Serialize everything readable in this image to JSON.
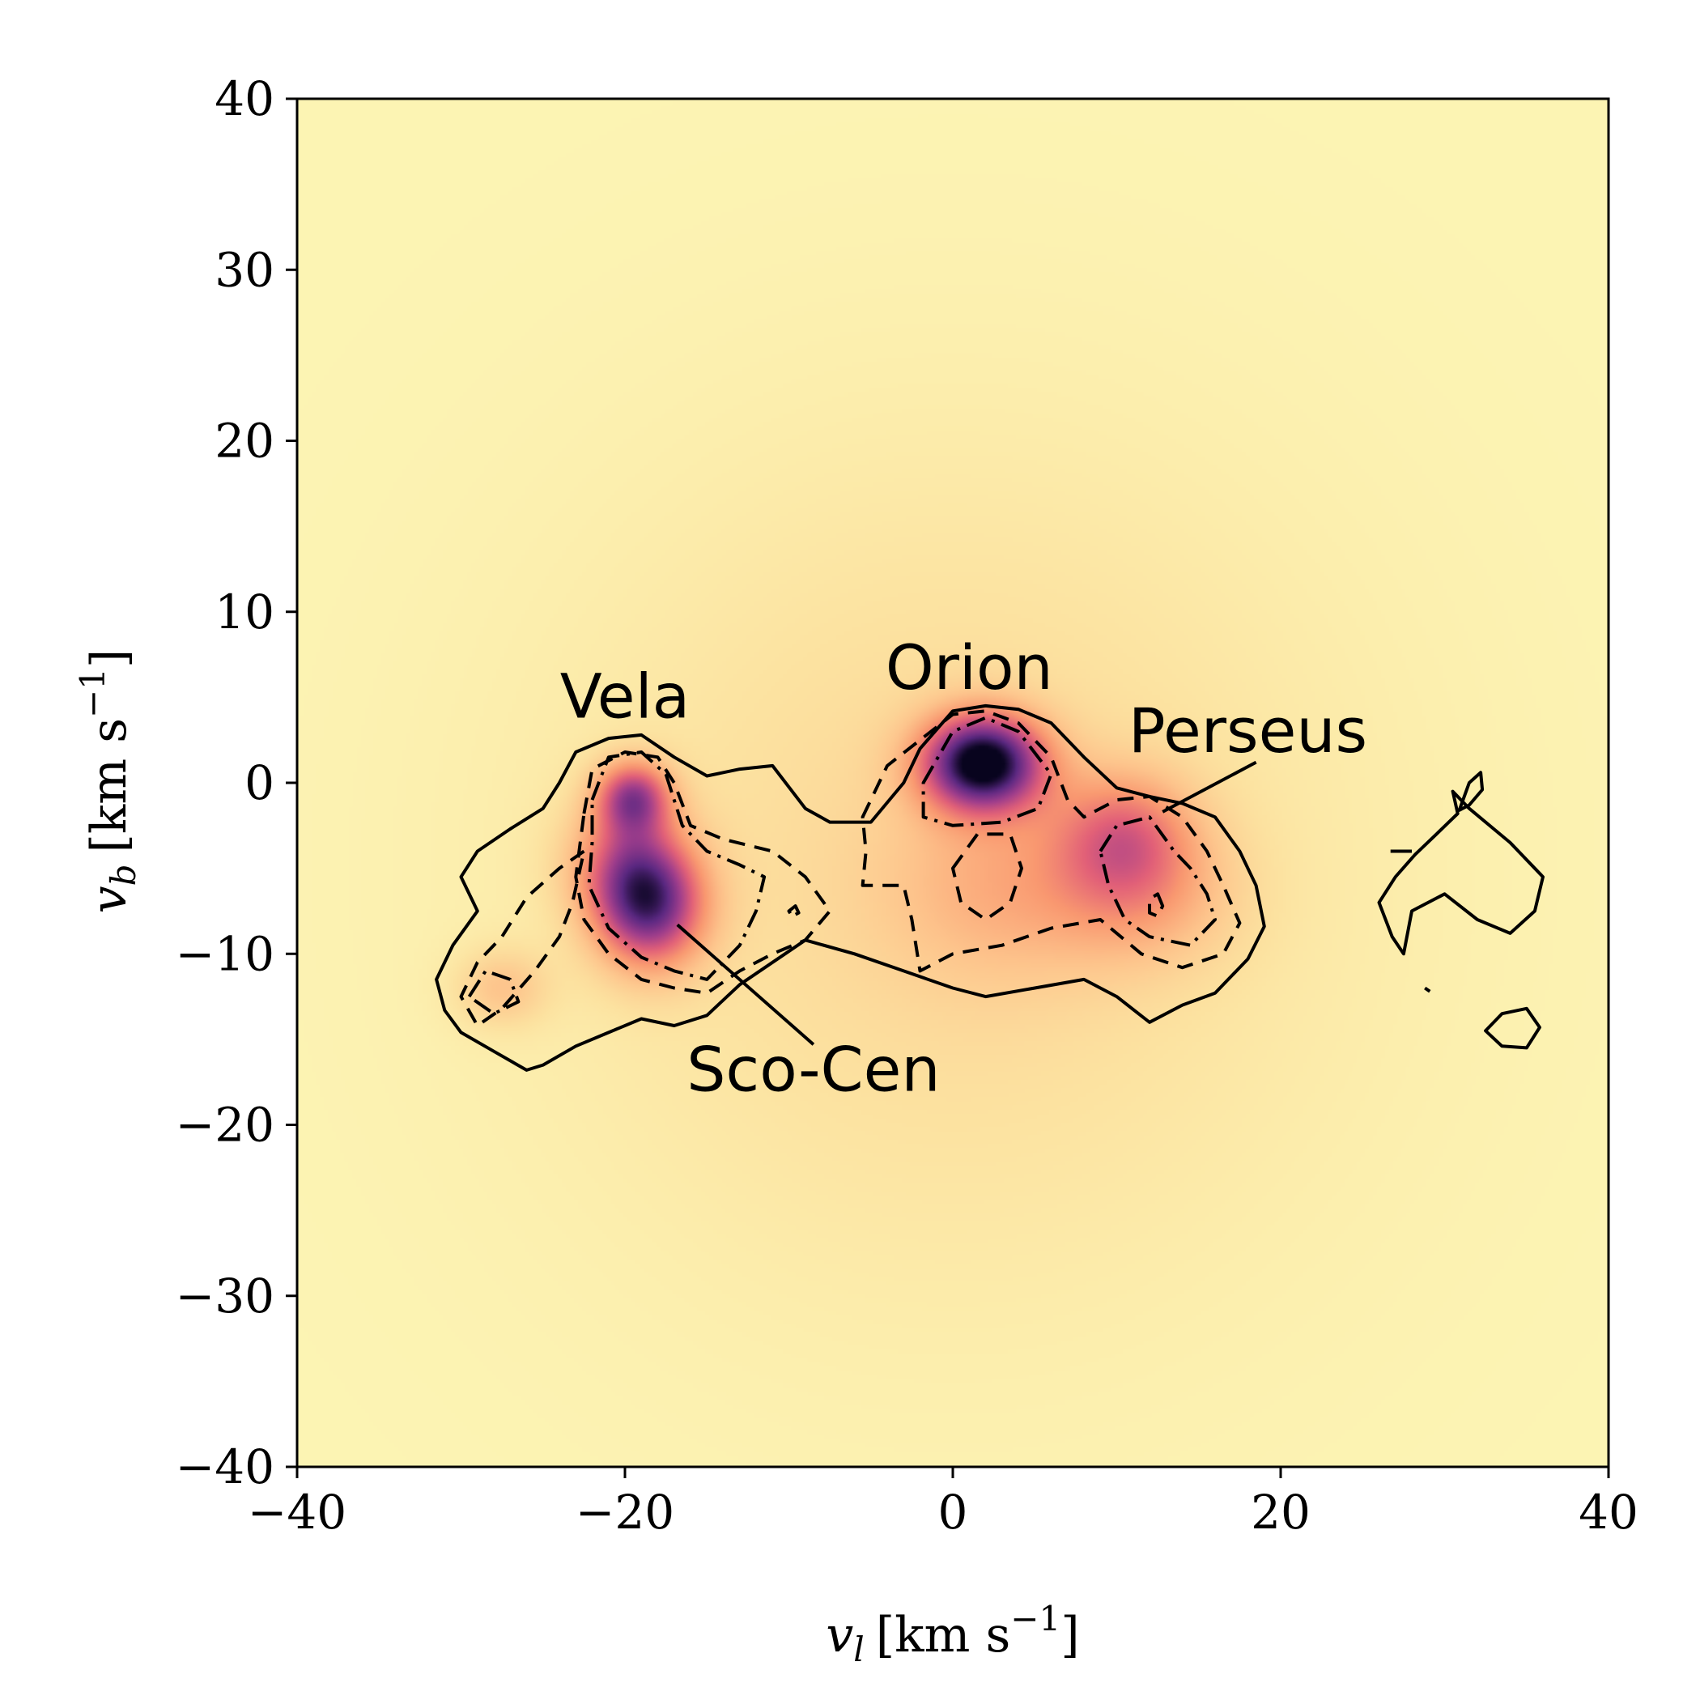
{
  "chart_data": {
    "type": "heatmap",
    "title": "",
    "xlabel": "v_l [km s^-1]",
    "ylabel": "v_b [km s^-1]",
    "xlabel_parts": {
      "sym": "v",
      "sub": "l",
      "unit": "[km s",
      "exp": "−1",
      "close": "]"
    },
    "ylabel_parts": {
      "sym": "v",
      "sub": "b",
      "unit": "[km s",
      "exp": "−1",
      "close": "]"
    },
    "xlim": [
      -40,
      40
    ],
    "ylim": [
      -40,
      40
    ],
    "xticks": [
      -40,
      -20,
      0,
      20,
      40
    ],
    "yticks": [
      -40,
      -30,
      -20,
      -10,
      0,
      10,
      20,
      30,
      40
    ],
    "xtick_labels": [
      "−40",
      "−20",
      "0",
      "20",
      "40"
    ],
    "ytick_labels": [
      "−40",
      "−30",
      "−20",
      "−10",
      "0",
      "10",
      "20",
      "30",
      "40"
    ],
    "colormap": "magma_r",
    "peaks": [
      {
        "x": 1.8,
        "y": 1.2,
        "amp": 1.0,
        "sx": 2.6,
        "sy": 2.0
      },
      {
        "x": -18.5,
        "y": -7.2,
        "amp": 0.75,
        "sx": 2.4,
        "sy": 2.6
      },
      {
        "x": -19.5,
        "y": -0.8,
        "amp": 0.6,
        "sx": 1.6,
        "sy": 1.5
      },
      {
        "x": -20.0,
        "y": -4.5,
        "amp": 0.35,
        "sx": 2.5,
        "sy": 2.5
      },
      {
        "x": 10.5,
        "y": -3.0,
        "amp": 0.35,
        "sx": 3.0,
        "sy": 2.6
      },
      {
        "x": 11.5,
        "y": -6.5,
        "amp": 0.22,
        "sx": 4.0,
        "sy": 3.0
      },
      {
        "x": -27.5,
        "y": -12.0,
        "amp": 0.2,
        "sx": 2.0,
        "sy": 1.6
      },
      {
        "x": 3.0,
        "y": -6.0,
        "amp": 0.18,
        "sx": 5.0,
        "sy": 4.0
      }
    ],
    "contours": [
      {
        "style": "solid",
        "points": [
          [
            -31,
            -13.3
          ],
          [
            -30,
            -14.6
          ],
          [
            -28,
            -15.7
          ],
          [
            -26,
            -16.8
          ],
          [
            -25,
            -16.5
          ],
          [
            -23,
            -15.4
          ],
          [
            -21,
            -14.6
          ],
          [
            -19,
            -13.8
          ],
          [
            -17,
            -14.2
          ],
          [
            -15,
            -13.6
          ],
          [
            -13,
            -11.8
          ],
          [
            -11,
            -10.5
          ],
          [
            -9,
            -9.2
          ],
          [
            -6,
            -10.0
          ],
          [
            -3,
            -11.0
          ],
          [
            0,
            -12.0
          ],
          [
            2,
            -12.5
          ],
          [
            5,
            -12.0
          ],
          [
            8,
            -11.5
          ],
          [
            10,
            -12.5
          ],
          [
            12,
            -14.0
          ],
          [
            14,
            -13.0
          ],
          [
            16,
            -12.3
          ],
          [
            18,
            -10.3
          ],
          [
            19,
            -8.4
          ],
          [
            18.5,
            -6.0
          ],
          [
            17.5,
            -4.0
          ],
          [
            16,
            -2.0
          ],
          [
            14,
            -1.2
          ],
          [
            12,
            -0.8
          ],
          [
            10,
            -0.3
          ],
          [
            8,
            1.5
          ],
          [
            6,
            3.5
          ],
          [
            4,
            4.3
          ],
          [
            2,
            4.5
          ],
          [
            0,
            4.2
          ],
          [
            -2,
            2.0
          ],
          [
            -3,
            0.0
          ],
          [
            -5,
            -2.3
          ],
          [
            -7.5,
            -2.3
          ],
          [
            -9,
            -1.5
          ],
          [
            -11,
            1.0
          ],
          [
            -13,
            0.8
          ],
          [
            -15,
            0.4
          ],
          [
            -17,
            1.5
          ],
          [
            -19,
            2.8
          ],
          [
            -21,
            2.6
          ],
          [
            -23,
            1.8
          ],
          [
            -24,
            0.0
          ],
          [
            -25,
            -1.5
          ],
          [
            -27,
            -2.7
          ],
          [
            -29,
            -4.0
          ],
          [
            -30,
            -5.5
          ],
          [
            -29,
            -7.5
          ],
          [
            -30.5,
            -9.5
          ],
          [
            -31.5,
            -11.5
          ]
        ]
      },
      {
        "style": "solid",
        "points": [
          [
            30.5,
            -0.5
          ],
          [
            31.5,
            -1.5
          ],
          [
            34,
            -3.5
          ],
          [
            36,
            -5.5
          ],
          [
            35.5,
            -7.5
          ],
          [
            34,
            -8.8
          ],
          [
            32,
            -8.0
          ],
          [
            30,
            -6.5
          ],
          [
            28,
            -7.5
          ],
          [
            27.5,
            -10.0
          ],
          [
            26.8,
            -9.0
          ],
          [
            26,
            -7.0
          ],
          [
            27,
            -5.5
          ],
          [
            28.2,
            -4.2
          ],
          [
            29.5,
            -3.0
          ],
          [
            30.8,
            -1.8
          ]
        ]
      },
      {
        "style": "solid",
        "points": [
          [
            30.9,
            -1.6
          ],
          [
            31.5,
            0.0
          ],
          [
            32.2,
            0.6
          ],
          [
            32.3,
            -0.4
          ],
          [
            31.5,
            -1.3
          ]
        ]
      },
      {
        "style": "solid",
        "points": [
          [
            33.5,
            -13.5
          ],
          [
            35,
            -13.2
          ],
          [
            35.8,
            -14.3
          ],
          [
            35,
            -15.5
          ],
          [
            33.5,
            -15.4
          ],
          [
            32.5,
            -14.5
          ]
        ]
      },
      {
        "style": "solid",
        "points": [
          [
            26.7,
            -4.0
          ],
          [
            28,
            -4.0
          ]
        ]
      },
      {
        "style": "solid",
        "points": [
          [
            28.8,
            -12.0
          ],
          [
            29.1,
            -12.2
          ]
        ]
      },
      {
        "style": "dashed",
        "points": [
          [
            -22.5,
            -1.8
          ],
          [
            -22,
            0.8
          ],
          [
            -20,
            1.8
          ],
          [
            -18,
            1.5
          ],
          [
            -17,
            0.0
          ],
          [
            -16,
            -2.5
          ],
          [
            -14,
            -3.3
          ],
          [
            -11,
            -4.0
          ],
          [
            -9,
            -5.5
          ],
          [
            -7.5,
            -7.5
          ],
          [
            -9,
            -9.2
          ],
          [
            -11,
            -10.0
          ],
          [
            -13,
            -11.0
          ],
          [
            -15,
            -12.3
          ],
          [
            -17,
            -12.0
          ],
          [
            -19,
            -11.5
          ],
          [
            -21,
            -10.0
          ],
          [
            -22.5,
            -8.0
          ],
          [
            -23,
            -5.5
          ]
        ]
      },
      {
        "style": "dashed",
        "points": [
          [
            -22.5,
            -4.0
          ],
          [
            -24,
            -5.0
          ],
          [
            -26,
            -6.7
          ],
          [
            -27.5,
            -9.0
          ],
          [
            -29,
            -10.5
          ],
          [
            -30,
            -12.5
          ],
          [
            -29,
            -14.2
          ],
          [
            -27.5,
            -13.2
          ],
          [
            -25.5,
            -11.0
          ],
          [
            -24,
            -9.0
          ],
          [
            -23.2,
            -7.0
          ],
          [
            -22.8,
            -5.3
          ]
        ]
      },
      {
        "style": "dashed",
        "points": [
          [
            -5.5,
            -2.0
          ],
          [
            -4,
            1.0
          ],
          [
            -2,
            2.5
          ],
          [
            0,
            4.0
          ],
          [
            2,
            4.2
          ],
          [
            4,
            3.5
          ],
          [
            6,
            1.5
          ],
          [
            7,
            -1.0
          ],
          [
            8,
            -2.0
          ],
          [
            10,
            -1.0
          ],
          [
            12,
            -0.8
          ],
          [
            14,
            -2.0
          ],
          [
            15.5,
            -4.0
          ],
          [
            16.5,
            -6.0
          ],
          [
            17.5,
            -8.2
          ],
          [
            16.5,
            -10.0
          ],
          [
            14,
            -10.8
          ],
          [
            11.5,
            -10.0
          ],
          [
            9,
            -8.0
          ],
          [
            6,
            -8.5
          ],
          [
            3,
            -9.5
          ],
          [
            0,
            -10.0
          ],
          [
            -2,
            -11.0
          ],
          [
            -2.5,
            -8.0
          ],
          [
            -3,
            -6.0
          ],
          [
            -5.5,
            -6.0
          ],
          [
            -5.3,
            -4.0
          ]
        ]
      },
      {
        "style": "dashed",
        "points": [
          [
            0,
            -5.0
          ],
          [
            1.5,
            -3.0
          ],
          [
            3.5,
            -3.0
          ],
          [
            4.2,
            -5.0
          ],
          [
            3.5,
            -7.0
          ],
          [
            2,
            -8.0
          ],
          [
            0.5,
            -7.0
          ]
        ]
      },
      {
        "style": "dashed",
        "points": [
          [
            12.5,
            -6.5
          ],
          [
            12.8,
            -7.2
          ],
          [
            12.5,
            -7.8
          ],
          [
            12.0,
            -7.6
          ],
          [
            12.0,
            -6.8
          ]
        ]
      },
      {
        "style": "dashdot",
        "points": [
          [
            -22,
            -1.0
          ],
          [
            -21,
            1.5
          ],
          [
            -19,
            1.8
          ],
          [
            -17.5,
            0.5
          ],
          [
            -16.5,
            -2.5
          ],
          [
            -15,
            -4.0
          ],
          [
            -13,
            -4.8
          ],
          [
            -11.5,
            -5.5
          ],
          [
            -12,
            -7.5
          ],
          [
            -13,
            -9.5
          ],
          [
            -15,
            -11.5
          ],
          [
            -17,
            -11.0
          ],
          [
            -19,
            -10.2
          ],
          [
            -21,
            -8.5
          ],
          [
            -22.2,
            -6.0
          ],
          [
            -22,
            -3.5
          ]
        ]
      },
      {
        "style": "dashdot",
        "points": [
          [
            -1.8,
            0.0
          ],
          [
            0,
            3.0
          ],
          [
            2,
            3.8
          ],
          [
            4,
            3.0
          ],
          [
            6,
            0.5
          ],
          [
            5.2,
            -1.5
          ],
          [
            3,
            -2.3
          ],
          [
            0,
            -2.5
          ],
          [
            -1.8,
            -2.0
          ]
        ]
      },
      {
        "style": "dashdot",
        "points": [
          [
            9,
            -4.0
          ],
          [
            10,
            -2.5
          ],
          [
            12,
            -2.0
          ],
          [
            13.5,
            -4.0
          ],
          [
            14.5,
            -5.0
          ],
          [
            15.5,
            -6.5
          ],
          [
            16,
            -8.0
          ],
          [
            14.5,
            -9.5
          ],
          [
            12,
            -9.0
          ],
          [
            10.5,
            -8.0
          ],
          [
            9.5,
            -6.0
          ]
        ]
      },
      {
        "style": "dashdot",
        "points": [
          [
            -29.5,
            -12.5
          ],
          [
            -28.5,
            -11.0
          ],
          [
            -27,
            -11.5
          ],
          [
            -26.5,
            -12.8
          ],
          [
            -28,
            -13.5
          ]
        ]
      },
      {
        "style": "dashdot",
        "points": [
          [
            -10,
            -7.5
          ],
          [
            -9.6,
            -7.2
          ],
          [
            -9.4,
            -7.6
          ],
          [
            -9.8,
            -7.8
          ]
        ]
      }
    ],
    "annotations": [
      {
        "text": "Vela",
        "x": -20,
        "y": 3.8,
        "anchor": "middle"
      },
      {
        "text": "Orion",
        "x": 1,
        "y": 5.5,
        "anchor": "middle"
      },
      {
        "text": "Perseus",
        "x": 18,
        "y": 1.8,
        "anchor": "middle"
      },
      {
        "text": "Sco-Cen",
        "x": -8.5,
        "y": -18,
        "anchor": "middle"
      }
    ],
    "arrows": [
      {
        "from": [
          -8.5,
          -15.3
        ],
        "to": [
          -16.8,
          -8.3
        ]
      },
      {
        "from": [
          18.5,
          1.2
        ],
        "to": [
          12.8,
          -1.7
        ]
      }
    ]
  }
}
